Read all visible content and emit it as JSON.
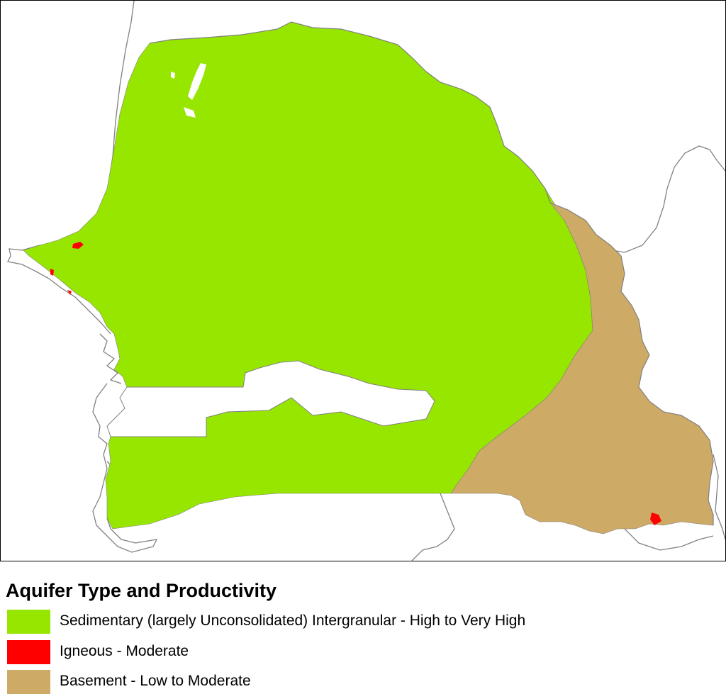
{
  "legend": {
    "title": "Aquifer Type and Productivity",
    "items": [
      {
        "label": "Sedimentary (largely Unconsolidated) Intergranular - High to Very High",
        "color": "#97e600"
      },
      {
        "label": "Igneous - Moderate",
        "color": "#ff0000"
      },
      {
        "label": "Basement - Low to Moderate",
        "color": "#cdaa66"
      }
    ]
  },
  "colors": {
    "boundary": "#808080",
    "frame": "#000000",
    "background": "#ffffff"
  }
}
